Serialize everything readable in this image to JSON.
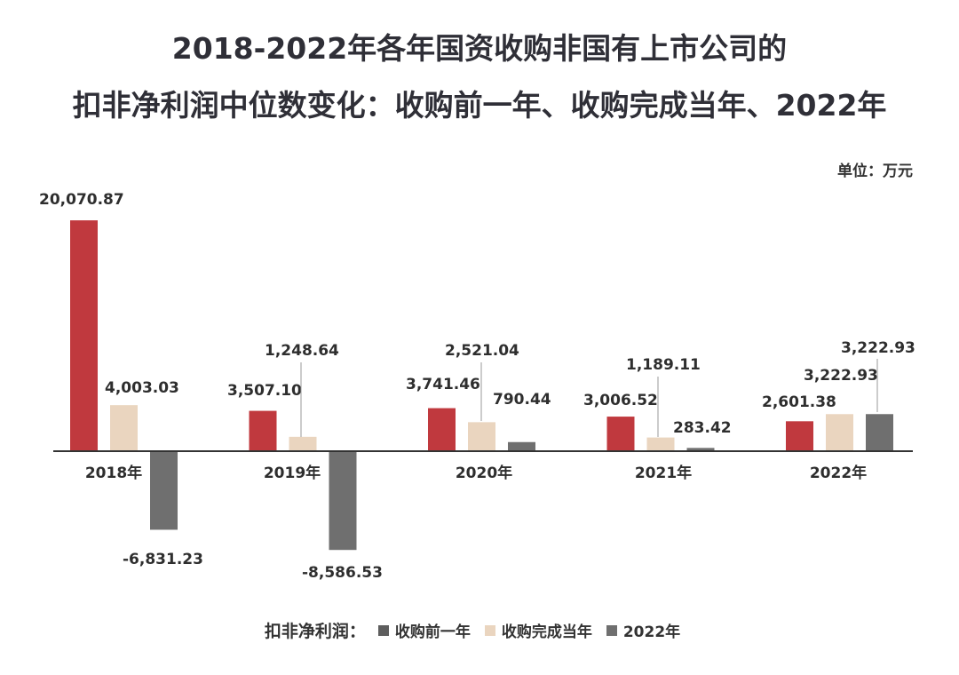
{
  "title_line1": "2018-2022年各年国资收购非国有上市公司的",
  "title_line2": "扣非净利润中位数变化：收购前一年、收购完成当年、2022年",
  "unit": "单位：万元",
  "legend": {
    "title": "扣非净利润：",
    "items": [
      {
        "label": "收购前一年",
        "color": "#5e5e5e"
      },
      {
        "label": "收购完成当年",
        "color": "#ead5bf"
      },
      {
        "label": "2022年",
        "color": "#6f6f6f"
      }
    ]
  },
  "chart_data": {
    "type": "bar",
    "categories": [
      "2018年",
      "2019年",
      "2020年",
      "2021年",
      "2022年"
    ],
    "series": [
      {
        "name": "收购前一年",
        "color": "#c0393e",
        "values": [
          20070.87,
          3507.1,
          3741.46,
          3006.52,
          2601.38
        ],
        "labels": [
          "20,070.87",
          "3,507.10",
          "3,741.46",
          "3,006.52",
          "2,601.38"
        ]
      },
      {
        "name": "收购完成当年",
        "color": "#ead5bf",
        "values": [
          4003.03,
          1248.64,
          2521.04,
          1189.11,
          3222.93
        ],
        "labels": [
          "4,003.03",
          "1,248.64",
          "2,521.04",
          "1,189.11",
          "3,222.93"
        ]
      },
      {
        "name": "2022年",
        "color": "#6f6f6f",
        "values": [
          -6831.23,
          -8586.53,
          790.44,
          283.42,
          3222.93
        ],
        "labels": [
          "-6,831.23",
          "-8,586.53",
          "790.44",
          "283.42",
          "3,222.93"
        ]
      }
    ],
    "ylim": [
      -9000,
      21000
    ]
  }
}
